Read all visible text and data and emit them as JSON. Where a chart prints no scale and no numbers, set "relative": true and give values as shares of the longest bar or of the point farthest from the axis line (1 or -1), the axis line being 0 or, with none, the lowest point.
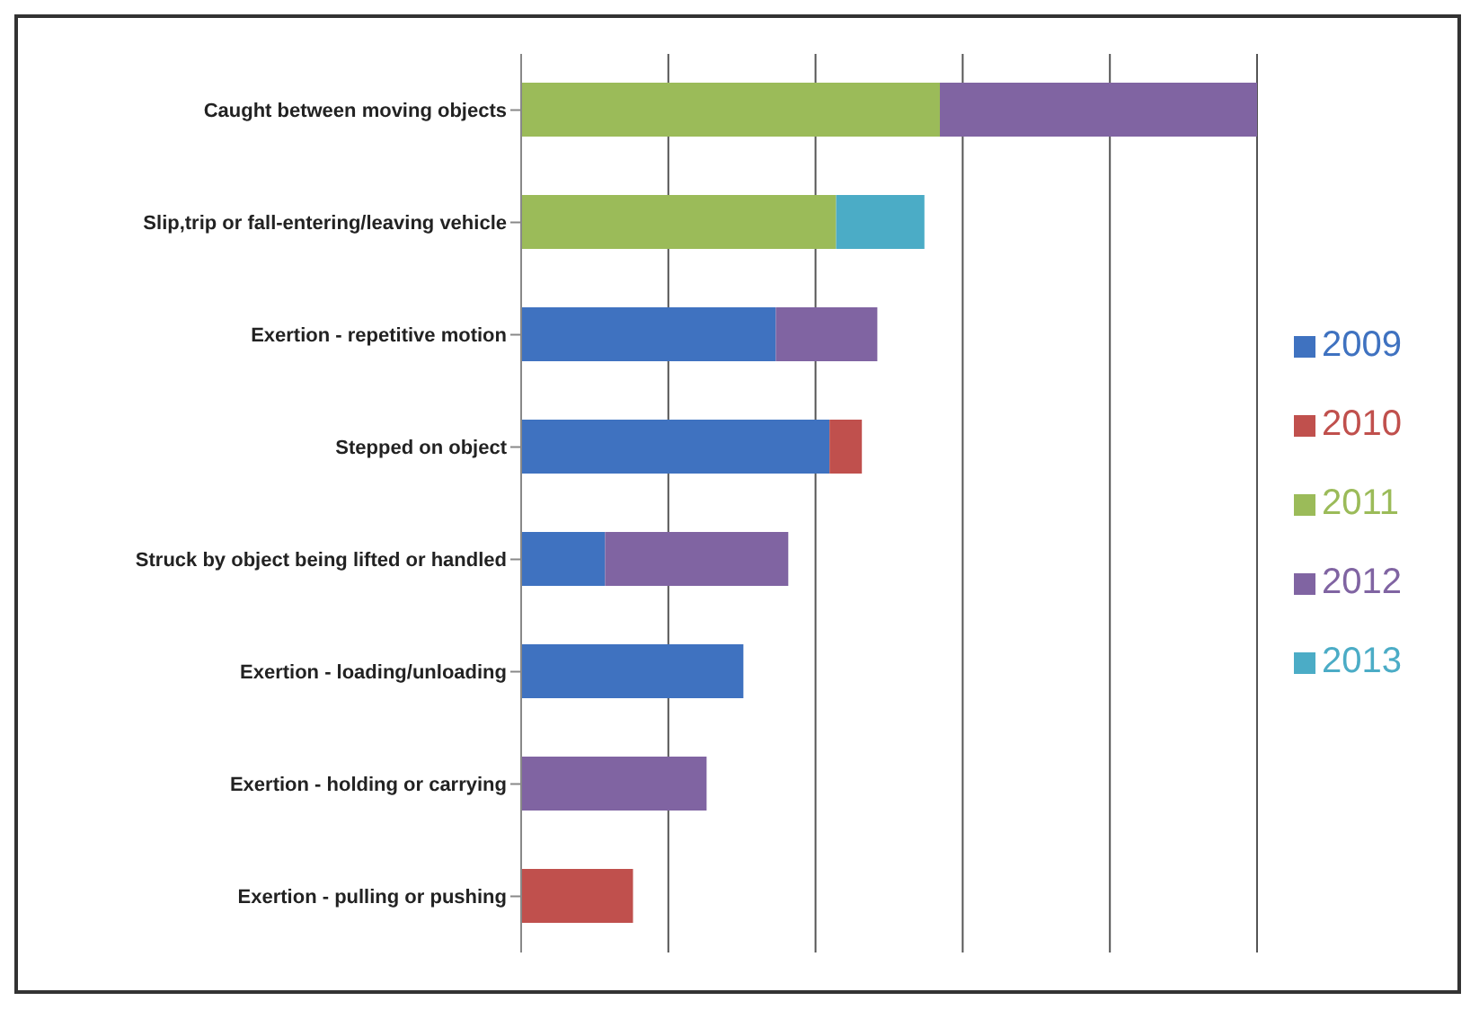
{
  "chart_data": {
    "type": "bar",
    "orientation": "horizontal",
    "stacked": true,
    "relative": true,
    "grid": "x",
    "legend": "right",
    "categories": [
      "Caught between moving objects",
      "Slip,trip or fall-entering/leaving vehicle",
      "Exertion - repetitive motion",
      "Stepped on object",
      "Struck by object being lifted or handled",
      "Exertion - loading/unloading",
      "Exertion - holding or carrying",
      "Exertion - pulling or pushing"
    ],
    "series": [
      {
        "name": "2009",
        "color": "#3f72c0",
        "values": [
          null,
          null,
          0.346,
          0.419,
          0.114,
          0.302,
          null,
          null
        ]
      },
      {
        "name": "2010",
        "color": "#c0504d",
        "values": [
          null,
          null,
          null,
          0.044,
          null,
          null,
          null,
          0.152
        ]
      },
      {
        "name": "2011",
        "color": "#9bbb59",
        "values": [
          0.569,
          0.428,
          null,
          null,
          null,
          null,
          null,
          null
        ]
      },
      {
        "name": "2012",
        "color": "#8064a2",
        "values": [
          0.431,
          null,
          0.138,
          null,
          0.249,
          null,
          0.252,
          null
        ]
      },
      {
        "name": "2013",
        "color": "#4bacc6",
        "values": [
          null,
          0.12,
          null,
          null,
          null,
          null,
          null,
          null
        ]
      }
    ]
  }
}
